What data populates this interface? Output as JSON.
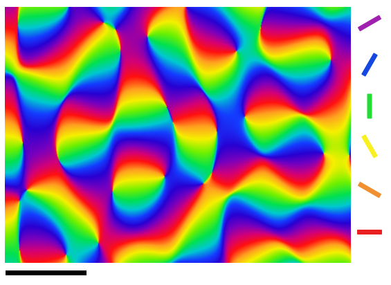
{
  "figure": {
    "map_colors": [
      "#ff1010",
      "#ffb020",
      "#f4f000",
      "#60f000",
      "#00e050",
      "#20d8d8",
      "#1040ff",
      "#2000d0",
      "#7000c0",
      "#d00080"
    ]
  },
  "legend": {
    "items": [
      {
        "name": "purple-orientation-bar",
        "color": "#a020b0",
        "angle_deg": 30
      },
      {
        "name": "blue-orientation-bar",
        "color": "#1448e0",
        "angle_deg": 60
      },
      {
        "name": "green-orientation-bar",
        "color": "#22dd33",
        "angle_deg": 90
      },
      {
        "name": "yellow-orientation-bar",
        "color": "#f8f020",
        "angle_deg": 120
      },
      {
        "name": "orange-orientation-bar",
        "color": "#f09030",
        "angle_deg": 150
      },
      {
        "name": "red-orientation-bar",
        "color": "#e82020",
        "angle_deg": 180
      }
    ]
  },
  "scale_bar": {
    "color": "#000000"
  }
}
